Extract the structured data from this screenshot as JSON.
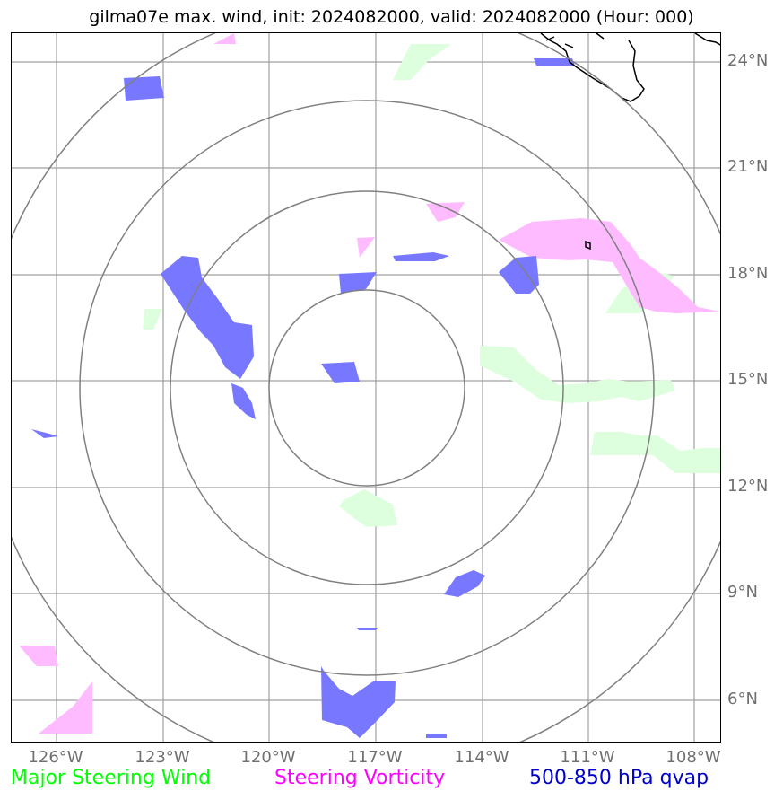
{
  "title": "gilma07e max. wind, init: 2024082000, valid: 2024082000 (Hour: 000)",
  "lat_labels": [
    "24°N",
    "21°N",
    "18°N",
    "15°N",
    "12°N",
    "9°N",
    "6°N"
  ],
  "lon_labels": [
    "126°W",
    "123°W",
    "120°W",
    "117°W",
    "114°W",
    "111°W",
    "108°W"
  ],
  "legend": {
    "wind": "Major Steering Wind",
    "vorticity": "Steering Vorticity",
    "qvap": "500-850 hPa qvap"
  },
  "colors": {
    "wind": "#00ff00",
    "vorticity": "#ff00ff",
    "qvap": "#0000cc",
    "wind_fill": "#ddffdd",
    "vort_fill": "#ffbbff",
    "qvap_fill": "#7777ff",
    "grid": "#a0a0a0",
    "rings": "#808080"
  }
}
